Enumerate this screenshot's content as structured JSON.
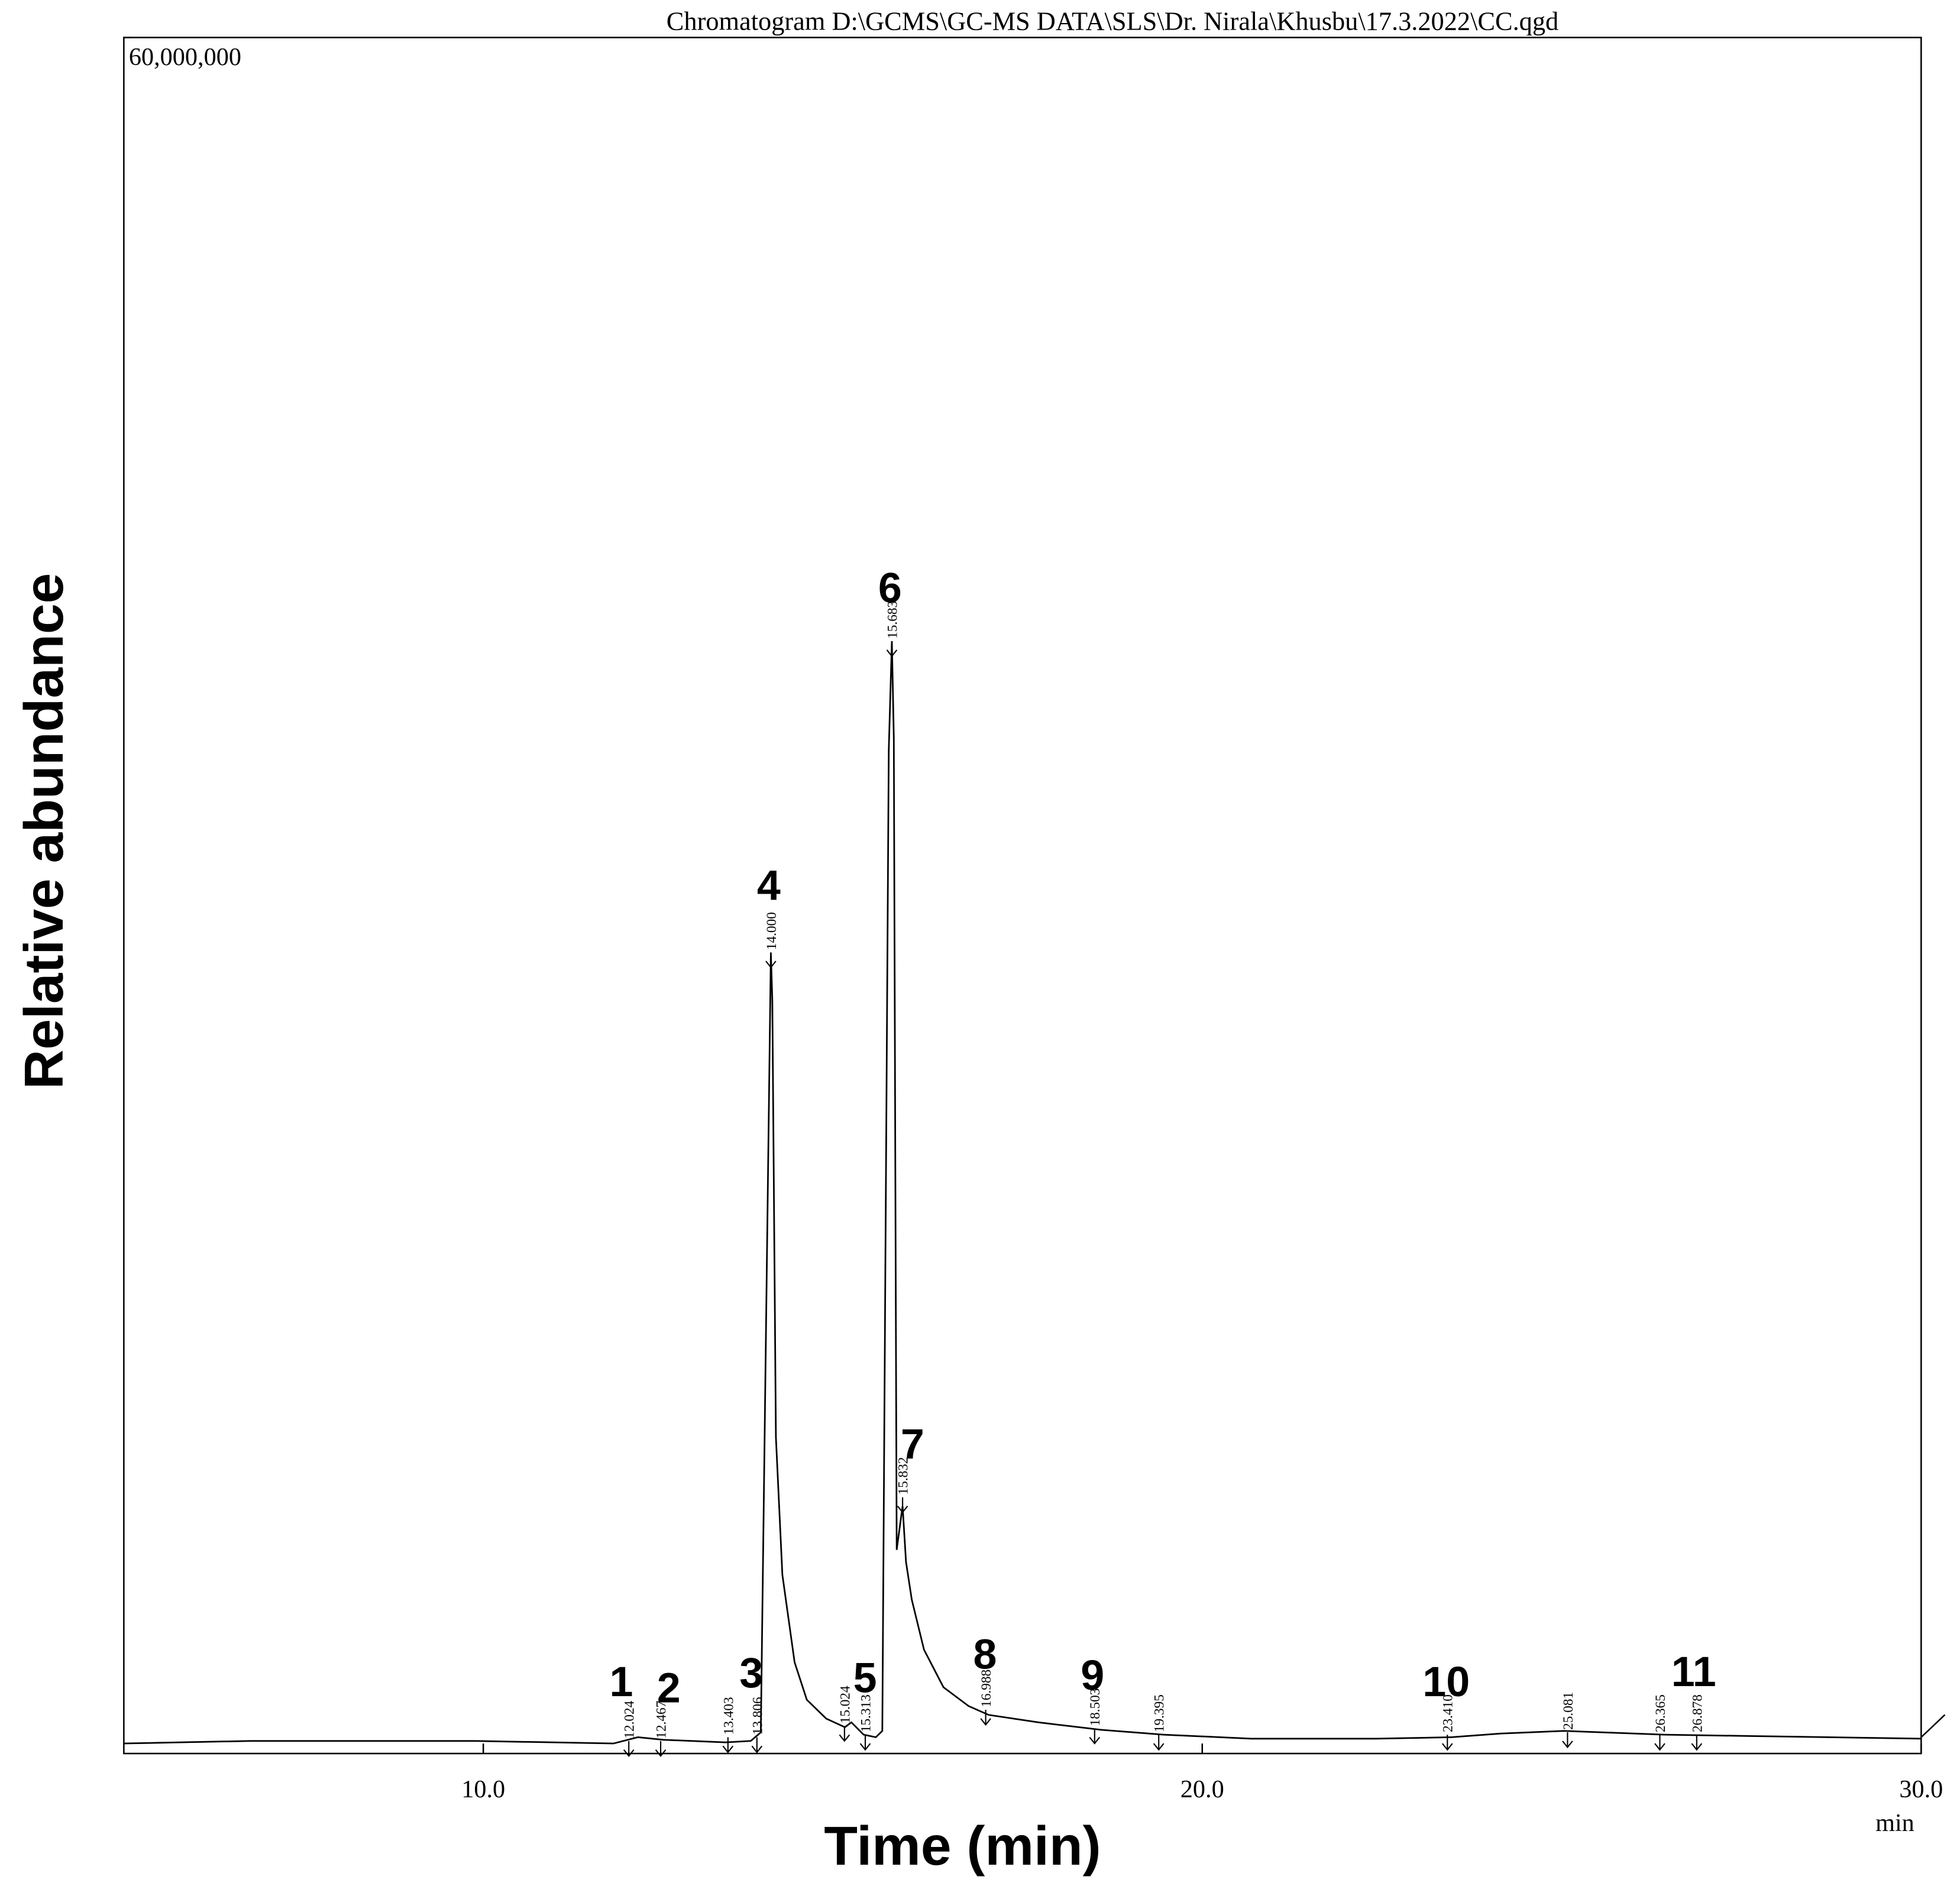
{
  "chart_data": {
    "type": "line",
    "title": "Chromatogram D:\\GCMS\\GC-MS DATA\\SLS\\Dr. Nirala\\Khusbu\\17.3.2022\\CC.qgd",
    "y_label": "Relative abundance",
    "x_label": "Time (min)",
    "x_unit": "min",
    "color": "#000000",
    "xlim": [
      5,
      30
    ],
    "xticks": [
      {
        "value": 10,
        "label": "10.0"
      },
      {
        "value": 20,
        "label": "20.0"
      },
      {
        "value": 30,
        "label": "30.0"
      }
    ],
    "ylim": [
      0,
      60000000
    ],
    "yticks": [
      {
        "value": 60000000,
        "label": "60,000,000"
      }
    ],
    "x": [
      5.0,
      6.76,
      9.89,
      11.81,
      12.15,
      12.5,
      13.37,
      13.72,
      13.86,
      14.0,
      14.02,
      14.07,
      14.16,
      14.33,
      14.5,
      14.77,
      15.03,
      15.12,
      15.29,
      15.46,
      15.55,
      15.64,
      15.683,
      15.71,
      15.75,
      15.832,
      15.88,
      15.96,
      16.13,
      16.4,
      16.75,
      17.03,
      17.72,
      18.59,
      19.46,
      20.68,
      22.42,
      23.47,
      24.16,
      25.03,
      26.43,
      27.65,
      30.0
    ],
    "values": [
      350000,
      440000,
      440000,
      350000,
      570000,
      480000,
      390000,
      440000,
      740000,
      28000000,
      26350000,
      11060000,
      6250000,
      3190000,
      1880000,
      1220000,
      920000,
      1090000,
      660000,
      570000,
      790000,
      35090000,
      38890000,
      35530000,
      7120000,
      8650000,
      6690000,
      5380000,
      3630000,
      2320000,
      1660000,
      1350000,
      1090000,
      830000,
      660000,
      520000,
      520000,
      570000,
      700000,
      790000,
      660000,
      610000,
      520000
    ],
    "retention_times": [
      12.024,
      12.467,
      13.403,
      13.806,
      {
        "value": 14,
        "label": "14.000"
      },
      15.024,
      15.313,
      15.683,
      15.832,
      16.988,
      18.503,
      19.395,
      {
        "value": 23.41,
        "label": "23.410"
      },
      25.081,
      26.365,
      26.878
    ],
    "peak_numbers": [
      "1",
      "2",
      "3",
      "4",
      "5",
      "6",
      "7",
      "8",
      "9",
      "10",
      "11"
    ]
  }
}
